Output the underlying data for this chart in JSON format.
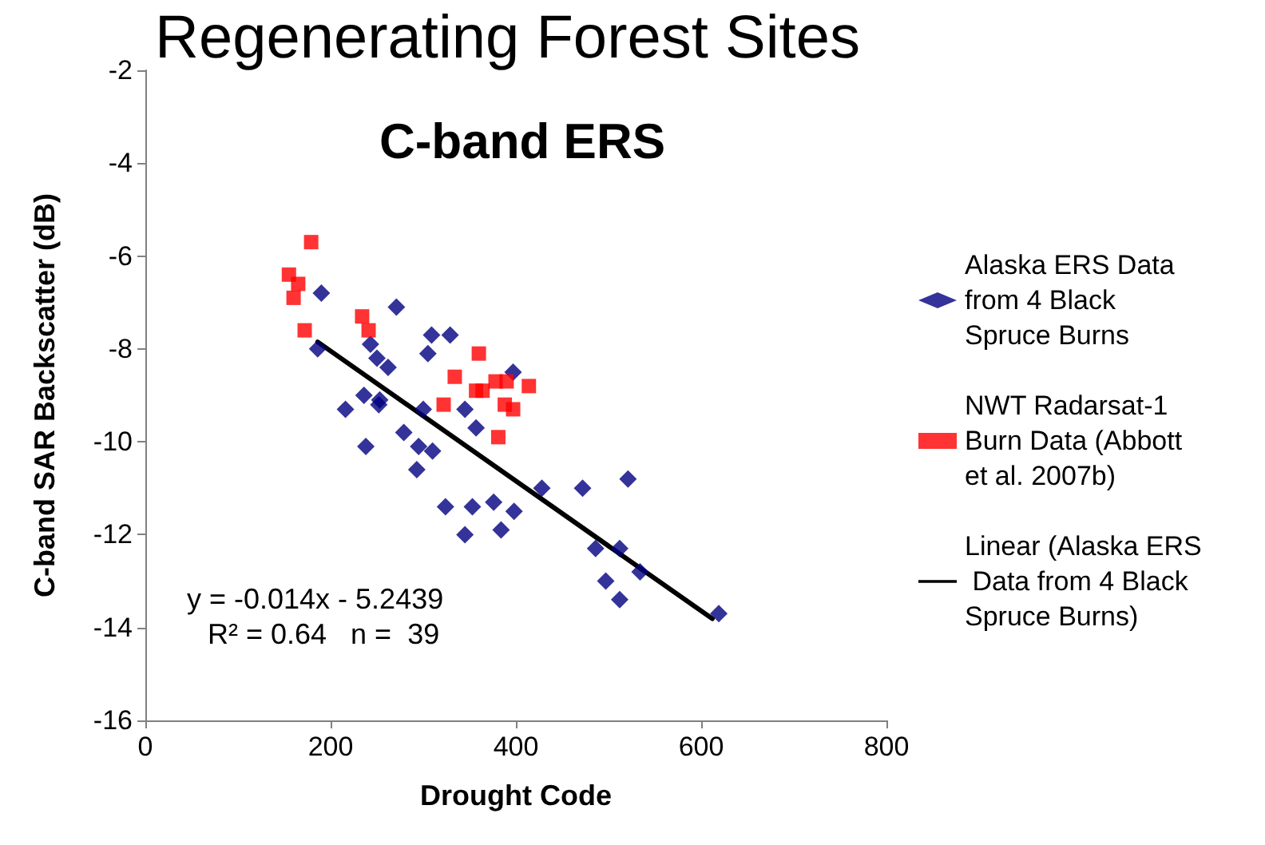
{
  "chart_data": {
    "type": "scatter",
    "title": "Regenerating Forest Sites",
    "subtitle": "C-band ERS",
    "xlabel": "Drought Code",
    "ylabel": "C-band SAR Backscatter (dB)",
    "annotations": [
      "y = -0.014x - 5.2439",
      "R² = 0.64   n =  39"
    ],
    "xlim": [
      0,
      800
    ],
    "xticks": [
      0,
      200,
      400,
      600,
      800
    ],
    "ylim": [
      -16,
      -2
    ],
    "yticks": [
      -16,
      -14,
      -12,
      -10,
      -8,
      -6,
      -4,
      -2
    ],
    "grid": false,
    "legend": "right",
    "series": [
      {
        "name": "Alaska ERS Data from 4 Black Spruce Burns",
        "marker": "diamond",
        "color": "#000080",
        "x": [
          190,
          271,
          186,
          243,
          250,
          262,
          309,
          329,
          305,
          397,
          236,
          253,
          252,
          216,
          300,
          345,
          357,
          279,
          238,
          295,
          310,
          293,
          428,
          324,
          353,
          376,
          398,
          345,
          384,
          472,
          521,
          486,
          512,
          497,
          512,
          534,
          619
        ],
        "values": [
          -6.8,
          -7.1,
          -8.0,
          -7.9,
          -8.2,
          -8.4,
          -7.7,
          -7.7,
          -8.1,
          -8.5,
          -9.0,
          -9.1,
          -9.2,
          -9.3,
          -9.3,
          -9.3,
          -9.7,
          -9.8,
          -10.1,
          -10.1,
          -10.2,
          -10.6,
          -11.0,
          -11.4,
          -11.4,
          -11.3,
          -11.5,
          -12.0,
          -11.9,
          -11.0,
          -10.8,
          -12.3,
          -12.3,
          -13.0,
          -13.4,
          -12.8,
          -13.7
        ]
      },
      {
        "name": "NWT Radarsat-1 Burn Data (Abbott et al. 2007b)",
        "marker": "square",
        "color": "#ff0000",
        "x": [
          179,
          155,
          165,
          160,
          172,
          234,
          241,
          360,
          334,
          322,
          357,
          364,
          378,
          390,
          388,
          397,
          381,
          414
        ],
        "values": [
          -5.7,
          -6.4,
          -6.6,
          -6.9,
          -7.6,
          -7.3,
          -7.6,
          -8.1,
          -8.6,
          -9.2,
          -8.9,
          -8.9,
          -8.7,
          -8.7,
          -9.2,
          -9.3,
          -9.9,
          -8.8
        ]
      },
      {
        "name": "Linear (Alaska ERS Data from 4 Black Spruce Burns)",
        "type": "line",
        "marker": "none",
        "line_style": "solid",
        "color": "#000000",
        "x": [
          186,
          612
        ],
        "values": [
          -7.85,
          -13.81
        ]
      }
    ]
  }
}
